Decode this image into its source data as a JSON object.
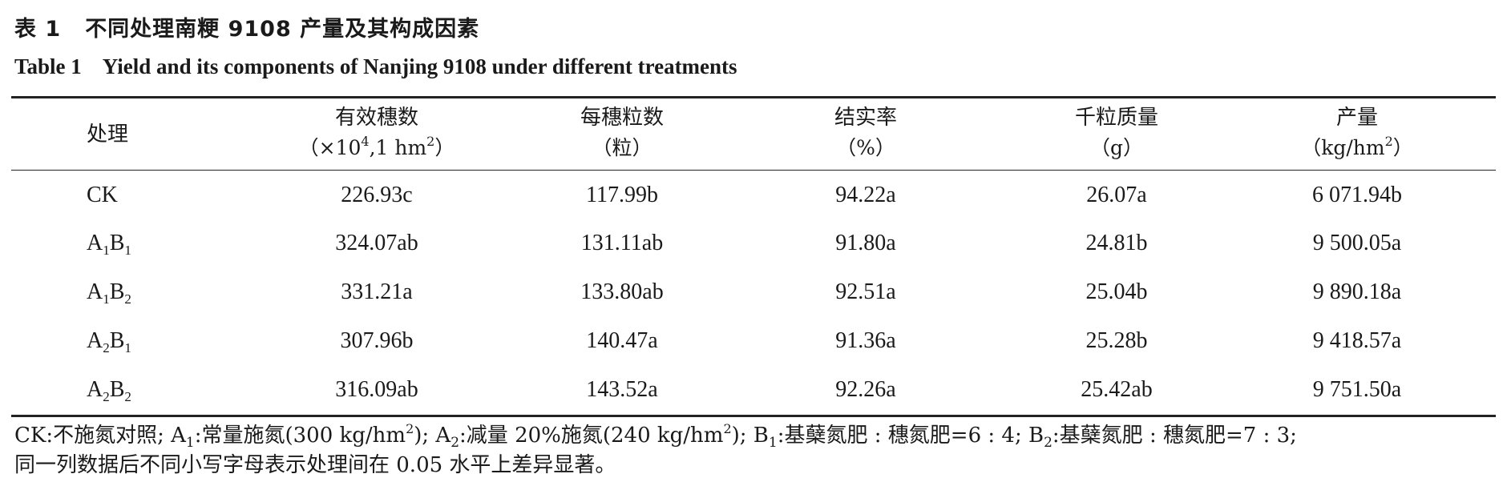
{
  "caption_cn": {
    "number": "表 1",
    "title": "不同处理南粳 9108 产量及其构成因素"
  },
  "caption_en": {
    "number": "Table 1",
    "title": "Yield and its components of Nanjing 9108 under different treatments"
  },
  "header": {
    "col0": "处理",
    "col1": {
      "name": "有效穗数",
      "unit_pre": "（×10",
      "unit_sup": "4",
      "unit_mid": ",1 hm",
      "unit_sup2": "2",
      "unit_post": "）"
    },
    "col2": {
      "name": "每穗粒数",
      "unit": "（粒）"
    },
    "col3": {
      "name": "结实率",
      "unit": "（%）"
    },
    "col4": {
      "name": "千粒质量",
      "unit": "（g）"
    },
    "col5": {
      "name": "产量",
      "unit_pre": "（kg/hm",
      "unit_sup": "2",
      "unit_post": "）"
    }
  },
  "rows": [
    {
      "t_main": "CK",
      "t_a": "",
      "t_asub": "",
      "t_b": "",
      "t_bsub": "",
      "panicles": "226.93c",
      "grains": "117.99b",
      "setting": "94.22a",
      "weight": "26.07a",
      "yield": "6 071.94b"
    },
    {
      "t_main": "",
      "t_a": "A",
      "t_asub": "1",
      "t_b": "B",
      "t_bsub": "1",
      "panicles": "324.07ab",
      "grains": "131.11ab",
      "setting": "91.80a",
      "weight": "24.81b",
      "yield": "9 500.05a"
    },
    {
      "t_main": "",
      "t_a": "A",
      "t_asub": "1",
      "t_b": "B",
      "t_bsub": "2",
      "panicles": "331.21a",
      "grains": "133.80ab",
      "setting": "92.51a",
      "weight": "25.04b",
      "yield": "9 890.18a"
    },
    {
      "t_main": "",
      "t_a": "A",
      "t_asub": "2",
      "t_b": "B",
      "t_bsub": "1",
      "panicles": "307.96b",
      "grains": "140.47a",
      "setting": "91.36a",
      "weight": "25.28b",
      "yield": "9 418.57a"
    },
    {
      "t_main": "",
      "t_a": "A",
      "t_asub": "2",
      "t_b": "B",
      "t_bsub": "2",
      "panicles": "316.09ab",
      "grains": "143.52a",
      "setting": "92.26a",
      "weight": "25.42ab",
      "yield": "9 751.50a"
    }
  ],
  "note": {
    "p1": "CK:不施氮对照; A",
    "s1": "1",
    "p2": ":常量施氮(300 kg/hm",
    "s2": "2",
    "p3": "); A",
    "s3": "2",
    "p4": ":减量 20%施氮(240 kg/hm",
    "s4": "2",
    "p5": "); B",
    "s5": "1",
    "p6": ":基蘖氮肥 : 穗氮肥=6 : 4; B",
    "s6": "2",
    "p7": ":基蘖氮肥 : 穗氮肥=7 : 3;",
    "line2": "同一列数据后不同小写字母表示处理间在 0.05 水平上差异显著。"
  }
}
